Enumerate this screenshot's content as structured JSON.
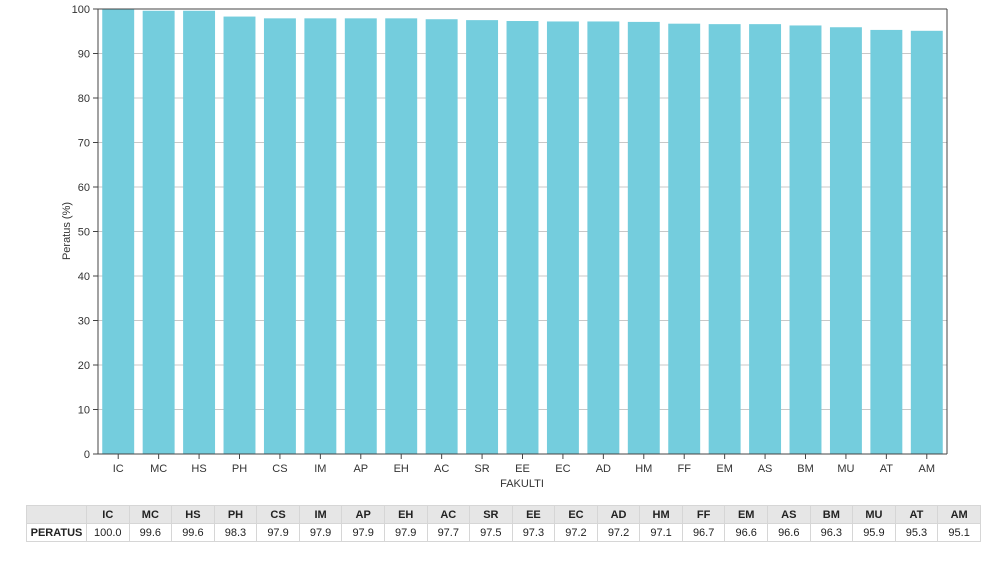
{
  "chart_data": {
    "type": "bar",
    "categories": [
      "IC",
      "MC",
      "HS",
      "PH",
      "CS",
      "IM",
      "AP",
      "EH",
      "AC",
      "SR",
      "EE",
      "EC",
      "AD",
      "HM",
      "FF",
      "EM",
      "AS",
      "BM",
      "MU",
      "AT",
      "AM"
    ],
    "values": [
      100.0,
      99.6,
      99.6,
      98.3,
      97.9,
      97.9,
      97.9,
      97.9,
      97.7,
      97.5,
      97.3,
      97.2,
      97.2,
      97.1,
      96.7,
      96.6,
      96.6,
      96.3,
      95.9,
      95.3,
      95.1
    ],
    "value_labels": [
      "100.0",
      "99.6",
      "99.6",
      "98.3",
      "97.9",
      "97.9",
      "97.9",
      "97.9",
      "97.7",
      "97.5",
      "97.3",
      "97.2",
      "97.2",
      "97.1",
      "96.7",
      "96.6",
      "96.6",
      "96.3",
      "95.9",
      "95.3",
      "95.1"
    ],
    "xlabel": "FAKULTI",
    "ylabel": "Peratus (%)",
    "ylim": [
      0,
      100
    ],
    "yticks": [
      0,
      10,
      20,
      30,
      40,
      50,
      60,
      70,
      80,
      90,
      100
    ],
    "grid": true,
    "bar_color": "#74cddd"
  },
  "table": {
    "row_label": "PERATUS"
  }
}
